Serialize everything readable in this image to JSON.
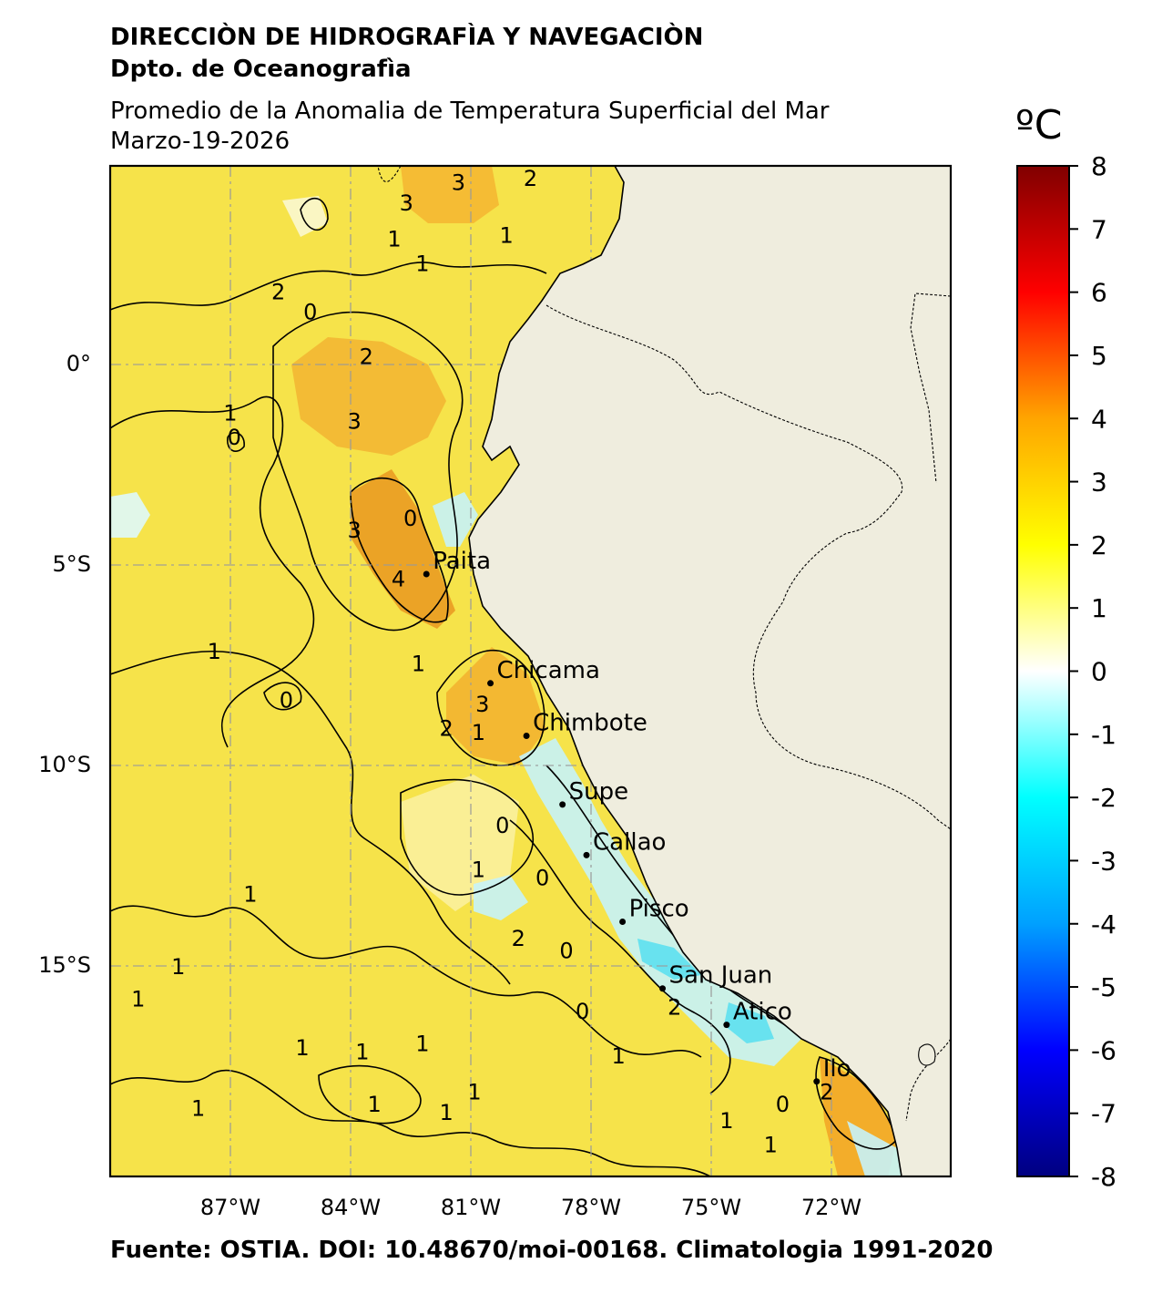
{
  "header": {
    "line1": "DIRECCIÒN DE HIDROGRAFÌA Y NAVEGACIÒN",
    "line2": "Dpto. de Oceanografìa",
    "subtitle": "Promedio de la Anomalia de Temperatura Superficial del Mar",
    "date": "Marzo-19-2026"
  },
  "footer": "Fuente: OSTIA. DOI: 10.48670/moi-00168. Climatologia 1991-2020",
  "map": {
    "lon_range": [
      -89,
      -68
    ],
    "lat_range": [
      -20,
      5
    ],
    "lon_ticks": [
      {
        "value": -87,
        "label": "87°W"
      },
      {
        "value": -84,
        "label": "84°W"
      },
      {
        "value": -81,
        "label": "81°W"
      },
      {
        "value": -78,
        "label": "78°W"
      },
      {
        "value": -75,
        "label": "75°W"
      },
      {
        "value": -72,
        "label": "72°W"
      }
    ],
    "lat_ticks": [
      {
        "value": 0,
        "label": "0°"
      },
      {
        "value": -5,
        "label": "5°S"
      },
      {
        "value": -10,
        "label": "10°S"
      },
      {
        "value": -15,
        "label": "15°S"
      }
    ],
    "ocean_color": "#f6e34a",
    "land_color": "#efedde",
    "cities": [
      {
        "name": "Paita",
        "lon": -81.1,
        "lat": -5.1
      },
      {
        "name": "Chicama",
        "lon": -79.5,
        "lat": -7.8
      },
      {
        "name": "Chimbote",
        "lon": -78.6,
        "lat": -9.1
      },
      {
        "name": "Supe",
        "lon": -77.7,
        "lat": -10.8
      },
      {
        "name": "Callao",
        "lon": -77.1,
        "lat": -12.05
      },
      {
        "name": "Pisco",
        "lon": -76.2,
        "lat": -13.7
      },
      {
        "name": "San Juan",
        "lon": -75.2,
        "lat": -15.35
      },
      {
        "name": "Atico",
        "lon": -73.6,
        "lat": -16.25
      },
      {
        "name": "Ilo",
        "lon": -71.35,
        "lat": -17.65
      }
    ],
    "contour_labels": [
      {
        "text": "3",
        "lon": -80.3,
        "lat": 4.4
      },
      {
        "text": "2",
        "lon": -78.5,
        "lat": 4.5
      },
      {
        "text": "3",
        "lon": -81.6,
        "lat": 3.9
      },
      {
        "text": "1",
        "lon": -81.9,
        "lat": 3.0
      },
      {
        "text": "1",
        "lon": -79.1,
        "lat": 3.1
      },
      {
        "text": "1",
        "lon": -81.2,
        "lat": 2.4
      },
      {
        "text": "2",
        "lon": -84.8,
        "lat": 1.7
      },
      {
        "text": "0",
        "lon": -84.0,
        "lat": 1.2
      },
      {
        "text": "2",
        "lon": -82.6,
        "lat": 0.1
      },
      {
        "text": "3",
        "lon": -82.9,
        "lat": -1.5
      },
      {
        "text": "1",
        "lon": -86.0,
        "lat": -1.3
      },
      {
        "text": "0",
        "lon": -85.9,
        "lat": -1.9
      },
      {
        "text": "3",
        "lon": -82.9,
        "lat": -4.2
      },
      {
        "text": "4",
        "lon": -81.8,
        "lat": -5.4
      },
      {
        "text": "0",
        "lon": -81.5,
        "lat": -3.9
      },
      {
        "text": "1",
        "lon": -86.4,
        "lat": -7.2
      },
      {
        "text": "0",
        "lon": -84.6,
        "lat": -8.4
      },
      {
        "text": "1",
        "lon": -81.3,
        "lat": -7.5
      },
      {
        "text": "3",
        "lon": -79.7,
        "lat": -8.5
      },
      {
        "text": "2",
        "lon": -80.6,
        "lat": -9.1
      },
      {
        "text": "1",
        "lon": -79.8,
        "lat": -9.2
      },
      {
        "text": "0",
        "lon": -79.2,
        "lat": -11.5
      },
      {
        "text": "1",
        "lon": -79.8,
        "lat": -12.6
      },
      {
        "text": "0",
        "lon": -78.2,
        "lat": -12.8
      },
      {
        "text": "1",
        "lon": -85.5,
        "lat": -13.2
      },
      {
        "text": "2",
        "lon": -78.8,
        "lat": -14.3
      },
      {
        "text": "0",
        "lon": -77.6,
        "lat": -14.6
      },
      {
        "text": "1",
        "lon": -87.3,
        "lat": -15.0
      },
      {
        "text": "1",
        "lon": -88.3,
        "lat": -15.8
      },
      {
        "text": "0",
        "lon": -77.2,
        "lat": -16.1
      },
      {
        "text": "2",
        "lon": -74.9,
        "lat": -16.0
      },
      {
        "text": "1",
        "lon": -84.2,
        "lat": -17.0
      },
      {
        "text": "1",
        "lon": -82.7,
        "lat": -17.1
      },
      {
        "text": "1",
        "lon": -81.2,
        "lat": -16.9
      },
      {
        "text": "1",
        "lon": -76.3,
        "lat": -17.2
      },
      {
        "text": "1",
        "lon": -86.8,
        "lat": -18.5
      },
      {
        "text": "1",
        "lon": -82.4,
        "lat": -18.4
      },
      {
        "text": "1",
        "lon": -80.6,
        "lat": -18.6
      },
      {
        "text": "1",
        "lon": -79.9,
        "lat": -18.1
      },
      {
        "text": "1",
        "lon": -73.6,
        "lat": -18.8
      },
      {
        "text": "0",
        "lon": -72.2,
        "lat": -18.4
      },
      {
        "text": "2",
        "lon": -71.1,
        "lat": -18.1
      },
      {
        "text": "1",
        "lon": -72.5,
        "lat": -19.4
      }
    ]
  },
  "colorbar": {
    "unit": "ºC",
    "min": -8,
    "max": 8,
    "ticks": [
      "8",
      "7",
      "6",
      "5",
      "4",
      "3",
      "2",
      "1",
      "0",
      "-1",
      "-2",
      "-3",
      "-4",
      "-5",
      "-6",
      "-7",
      "-8"
    ],
    "stops": [
      "#000080",
      "#0000ff",
      "#00a0ff",
      "#00ffff",
      "#ffffff",
      "#ffff00",
      "#ffa500",
      "#ff0000",
      "#800000"
    ]
  }
}
